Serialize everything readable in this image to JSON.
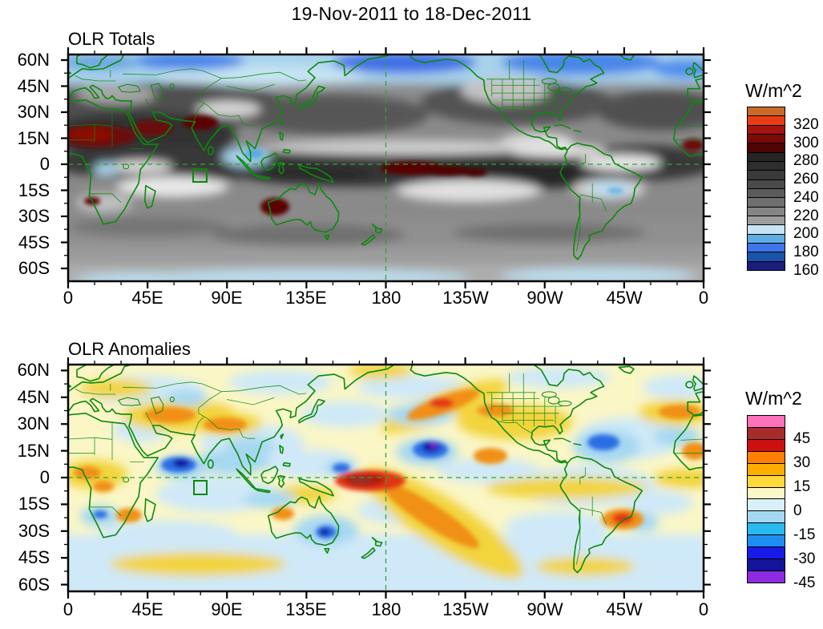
{
  "title": "19-Nov-2011 to 18-Dec-2011",
  "panels": [
    {
      "title": "OLR Totals",
      "units": "W/m^2",
      "x_ticks": [
        "0",
        "45E",
        "90E",
        "135E",
        "180",
        "135W",
        "90W",
        "45W",
        "0"
      ],
      "y_ticks": [
        "60N",
        "45N",
        "30N",
        "15N",
        "0",
        "15S",
        "30S",
        "45S",
        "60S"
      ],
      "colorbar_labels": [
        "320",
        "300",
        "280",
        "260",
        "240",
        "220",
        "200",
        "180",
        "160"
      ],
      "colorbar_colors": [
        "#c96b27",
        "#ea3c14",
        "#a31310",
        "#7c0a08",
        "#4e0404",
        "#242424",
        "#2e2e2e",
        "#3a3a3a",
        "#4a4a4a",
        "#5b5b5b",
        "#6f6f6f",
        "#858585",
        "#9d9d9d",
        "#c6e4f3",
        "#5fade4",
        "#3f74ea",
        "#1b53ab",
        "#1d1d7c"
      ]
    },
    {
      "title": "OLR Anomalies",
      "units": "W/m^2",
      "x_ticks": [
        "0",
        "45E",
        "90E",
        "135E",
        "180",
        "135W",
        "90W",
        "45W",
        "0"
      ],
      "y_ticks": [
        "60N",
        "45N",
        "30N",
        "15N",
        "0",
        "15S",
        "30S",
        "45S",
        "60S"
      ],
      "colorbar_labels": [
        "45",
        "30",
        "15",
        "0",
        "-15",
        "-30",
        "-45"
      ],
      "colorbar_colors": [
        "#ff72b9",
        "#a62c2c",
        "#ce0f0f",
        "#ff7f00",
        "#ffae00",
        "#ffd93c",
        "#fbf8c8",
        "#d9f0fb",
        "#a6d8f2",
        "#28b9f0",
        "#1e8ff2",
        "#1a1ae8",
        "#14149a",
        "#8c2be0"
      ]
    }
  ],
  "chart_data": [
    {
      "type": "heatmap",
      "title": "OLR Totals",
      "units": "W/m^2",
      "projection": "equirectangular filled-contour world map with green coastlines and US state borders",
      "lon_range": [
        0,
        360
      ],
      "lat_range": [
        -65,
        65
      ],
      "contour_min": 150,
      "contour_max": 330,
      "contour_step": 10,
      "labeled_levels": [
        320,
        300,
        280,
        260,
        240,
        220,
        200,
        180,
        160
      ],
      "annotations": [
        "dashed green equator line",
        "dashed green 180-deg meridian",
        "small green index box near 80E on the equator"
      ],
      "features": [
        "high OLR (dark red >300) over Sahara, Arabia, NW India, northwest Australia, west Africa near prime meridian and an equatorial central-Pacific streak",
        "low OLR (blues 160-200) along the poleward edges over Siberia, northern Canada and the Southern Ocean rim",
        "dark gray convective bands through the tropics; bright near-white subtropical dry zones over the south Indian Ocean, southeast Pacific, east Pacific at 15N, Atlantic and southern Brazil",
        "light blue patches over Indonesia and the Congo basin"
      ]
    },
    {
      "type": "heatmap",
      "title": "OLR Anomalies",
      "units": "W/m^2",
      "projection": "equirectangular filled-contour world map with green coastlines and US state borders",
      "lon_range": [
        0,
        360
      ],
      "lat_range": [
        -65,
        65
      ],
      "contour_min": -52.5,
      "contour_max": 52.5,
      "contour_step": 7.5,
      "labeled_levels": [
        45,
        30,
        15,
        0,
        -15,
        -30,
        -45
      ],
      "annotations": [
        "dashed green equator line",
        "dashed green 180-deg meridian",
        "small green index box near 80E on the equator"
      ],
      "features": [
        "strong positive anomaly (dark red ~+45) centered on the equator near the date line with an orange SPCZ streak extending southeast (suppressed convection, MJO/La Nina pattern)",
        "strong negative anomalies (navy/purple ~-45) over the Arabian Sea, north-central Pacific near 15N-150W, and southeast Australia (enhanced convection)",
        "orange positive anomalies over Turkey/Middle East, the Himalayas, west Africa, the northeast Pacific, southern South America and the subtropical North Atlantic",
        "pale yellow/pale blue patchwork background elsewhere"
      ]
    }
  ]
}
